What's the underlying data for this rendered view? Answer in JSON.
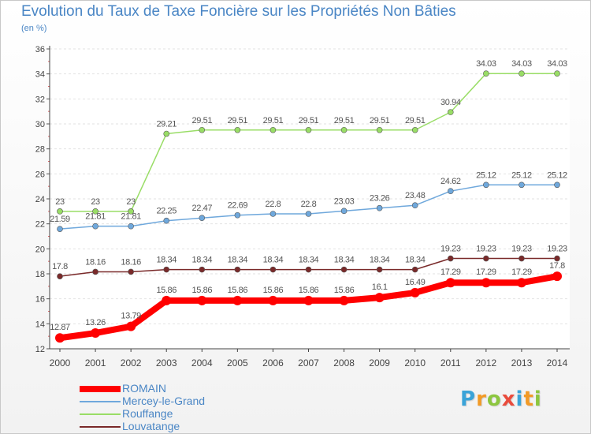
{
  "title": "Evolution du Taux de Taxe Foncière sur les Propriétés Non Bâties",
  "subtitle": "(en %)",
  "brand": {
    "text": "Proxiti",
    "letters": [
      {
        "ch": "P",
        "color": "#3aa3d8"
      },
      {
        "ch": "r",
        "color": "#f29a26"
      },
      {
        "ch": "o",
        "color": "#8cc63f"
      },
      {
        "ch": "x",
        "color": "#e94b3c"
      },
      {
        "ch": "i",
        "color": "#3aa3d8"
      },
      {
        "ch": "t",
        "color": "#f29a26"
      },
      {
        "ch": "i",
        "color": "#8cc63f"
      }
    ]
  },
  "chart_data": {
    "type": "line",
    "title": "Evolution du Taux de Taxe Foncière sur les Propriétés Non Bâties",
    "ylabel": "(en %)",
    "xlabel": "",
    "x": [
      "2000",
      "2001",
      "2002",
      "2003",
      "2004",
      "2005",
      "2006",
      "2007",
      "2008",
      "2009",
      "2010",
      "2011",
      "2012",
      "2013",
      "2014"
    ],
    "ylim": [
      12,
      36
    ],
    "yticks": [
      "12",
      "14",
      "16",
      "18",
      "20",
      "22",
      "24",
      "26",
      "28",
      "30",
      "32",
      "34",
      "36"
    ],
    "grid": "horizontal-dashed",
    "legend_position": "bottom-left",
    "series": [
      {
        "name": "ROMAIN",
        "color": "#ff0000",
        "values": [
          12.87,
          13.26,
          13.79,
          15.86,
          15.86,
          15.86,
          15.86,
          15.86,
          15.86,
          16.1,
          16.49,
          17.29,
          17.29,
          17.29,
          17.8
        ],
        "labels": [
          "12.87",
          "13.26",
          "13.79",
          "15.86",
          "15.86",
          "15.86",
          "15.86",
          "15.86",
          "15.86",
          "16.1",
          "16.49",
          "17.29",
          "17.29",
          "17.29",
          "17.8"
        ]
      },
      {
        "name": "Mercey-le-Grand",
        "color": "#6fa8dc",
        "values": [
          21.59,
          21.81,
          21.81,
          22.25,
          22.47,
          22.69,
          22.8,
          22.8,
          23.03,
          23.26,
          23.48,
          24.62,
          25.12,
          25.12,
          25.12
        ],
        "labels": [
          "21.59",
          "21.81",
          "21.81",
          "22.25",
          "22.47",
          "22.69",
          "22.8",
          "22.8",
          "23.03",
          "23.26",
          "23.48",
          "24.62",
          "25.12",
          "25.12",
          "25.12"
        ]
      },
      {
        "name": "Rouffange",
        "color": "#99dd66",
        "values": [
          23,
          23,
          23,
          29.21,
          29.51,
          29.51,
          29.51,
          29.51,
          29.51,
          29.51,
          29.51,
          30.94,
          34.03,
          34.03,
          34.03
        ],
        "labels": [
          "23",
          "23",
          "23",
          "29.21",
          "29.51",
          "29.51",
          "29.51",
          "29.51",
          "29.51",
          "29.51",
          "29.51",
          "30.94",
          "34.03",
          "34.03",
          "34.03"
        ]
      },
      {
        "name": "Louvatange",
        "color": "#7a2a2a",
        "values": [
          17.8,
          18.16,
          18.16,
          18.34,
          18.34,
          18.34,
          18.34,
          18.34,
          18.34,
          18.34,
          18.34,
          19.23,
          19.23,
          19.23,
          19.23
        ],
        "labels": [
          "17.8",
          "18.16",
          "18.16",
          "18.34",
          "18.34",
          "18.34",
          "18.34",
          "18.34",
          "18.34",
          "18.34",
          "18.34",
          "19.23",
          "19.23",
          "19.23",
          "19.23"
        ]
      }
    ]
  }
}
